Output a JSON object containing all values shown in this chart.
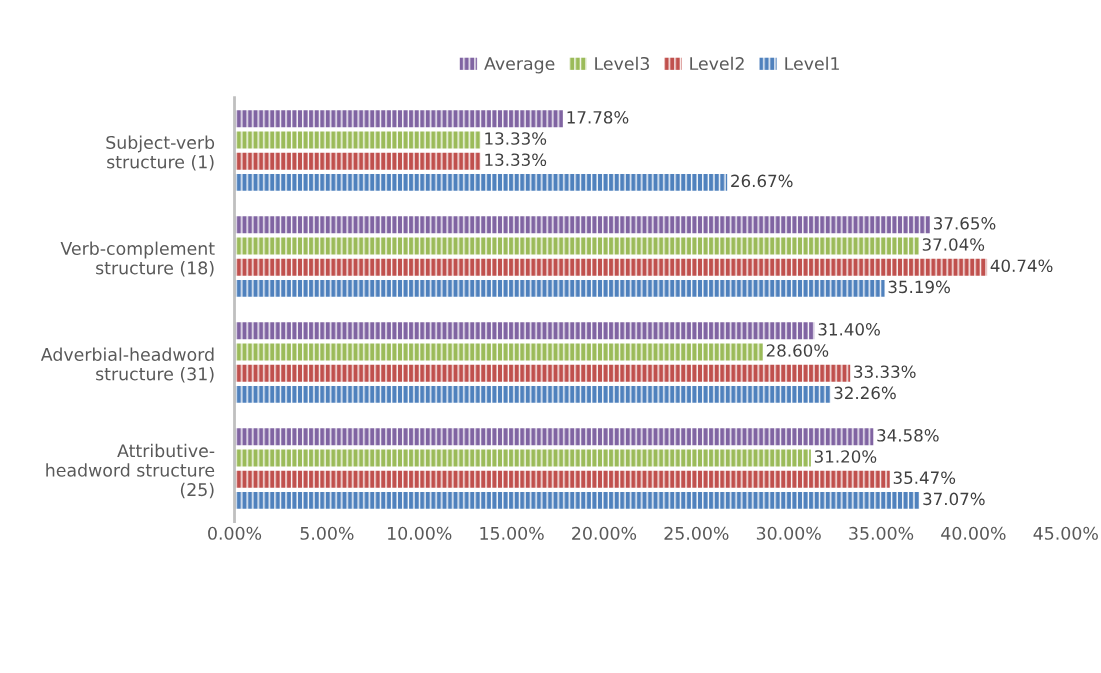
{
  "chart_data": {
    "type": "bar",
    "orientation": "horizontal",
    "categories": [
      "Subject-verb\nstructure (1)",
      "Verb-complement\nstructure (18)",
      "Adverbial-headword\nstructure (31)",
      "Attributive-\nheadword structure\n(25)"
    ],
    "series": [
      {
        "name": "Average",
        "color": "#8064a2",
        "values": [
          17.78,
          37.65,
          31.4,
          34.58
        ],
        "value_labels": [
          "17.78%",
          "37.65%",
          "31.40%",
          "34.58%"
        ]
      },
      {
        "name": "Level3",
        "color": "#9bbb59",
        "values": [
          13.33,
          37.04,
          28.6,
          31.2
        ],
        "value_labels": [
          "13.33%",
          "37.04%",
          "28.60%",
          "31.20%"
        ]
      },
      {
        "name": "Level2",
        "color": "#c0504d",
        "values": [
          13.33,
          40.74,
          33.33,
          35.47
        ],
        "value_labels": [
          "13.33%",
          "40.74%",
          "33.33%",
          "35.47%"
        ]
      },
      {
        "name": "Level1",
        "color": "#4f81bd",
        "values": [
          26.67,
          35.19,
          32.26,
          37.07
        ],
        "value_labels": [
          "26.67%",
          "35.19%",
          "32.26%",
          "37.07%"
        ]
      }
    ],
    "xlim": [
      0,
      45
    ],
    "xticks": [
      {
        "value": 0,
        "label": "0.00%"
      },
      {
        "value": 5,
        "label": "5.00%"
      },
      {
        "value": 10,
        "label": "10.00%"
      },
      {
        "value": 15,
        "label": "15.00%"
      },
      {
        "value": 20,
        "label": "20.00%"
      },
      {
        "value": 25,
        "label": "25.00%"
      },
      {
        "value": 30,
        "label": "30.00%"
      },
      {
        "value": 35,
        "label": "35.00%"
      },
      {
        "value": 40,
        "label": "40.00%"
      },
      {
        "value": 45,
        "label": "45.00%"
      }
    ],
    "grid": false,
    "legend": "top"
  }
}
